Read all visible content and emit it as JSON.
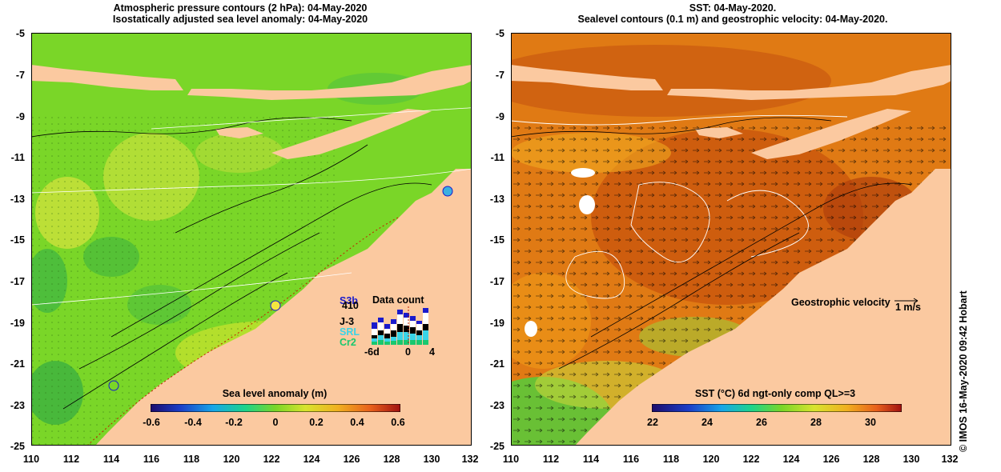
{
  "left_panel": {
    "title_line1": "Atmospheric pressure contours (2 hPa): 04-May-2020",
    "title_line2": "Isostatically adjusted sea level anomaly: 04-May-2020",
    "colorbar": {
      "label": "Sea level anomaly (m)",
      "ticks": [
        "-0.6",
        "-0.4",
        "-0.2",
        "0",
        "0.2",
        "0.4",
        "0.6"
      ]
    },
    "data_count": {
      "title": "Data count",
      "satellites": [
        {
          "name": "S3b",
          "color": "#1a1acc"
        },
        {
          "name": "410",
          "color": "#000000"
        },
        {
          "name": "J-3",
          "color": "#000000"
        },
        {
          "name": "SRL",
          "color": "#39d4e8"
        },
        {
          "name": "Cr2",
          "color": "#19c86e"
        }
      ],
      "axis_ticks": [
        "-6d",
        "0",
        "4"
      ]
    }
  },
  "right_panel": {
    "title_line1": "SST: 04-May-2020.",
    "title_line2": "Sealevel contours (0.1 m) and geostrophic velocity: 04-May-2020.",
    "colorbar": {
      "label": "SST (°C) 6d ngt-only comp QL>=3",
      "ticks": [
        "22",
        "24",
        "26",
        "28",
        "30"
      ]
    },
    "velocity_legend": {
      "label": "Geostrophic velocity",
      "unit": "1 m/s"
    }
  },
  "axes": {
    "x_ticks": [
      "110",
      "112",
      "114",
      "116",
      "118",
      "120",
      "122",
      "124",
      "126",
      "128",
      "130",
      "132"
    ],
    "y_ticks": [
      "-5",
      "-7",
      "-9",
      "-11",
      "-13",
      "-15",
      "-17",
      "-19",
      "-21",
      "-23",
      "-25"
    ],
    "lon_range": [
      110,
      132
    ],
    "lat_range": [
      -25,
      -5
    ]
  },
  "credit": "© IMOS 16-May-2020 09:42 Hobart",
  "colors": {
    "land": "#fbc9a0",
    "sla_base": "#7ad628",
    "sst_base": "#e07a14"
  }
}
